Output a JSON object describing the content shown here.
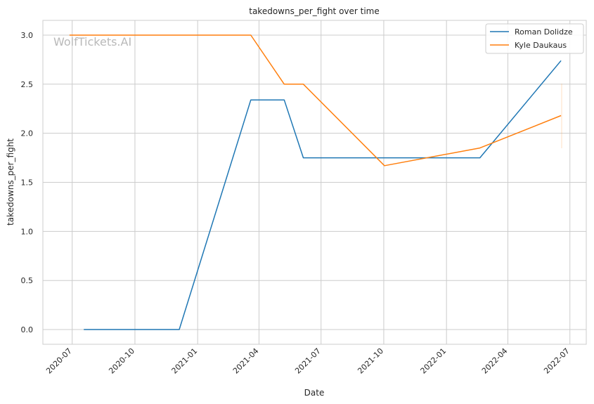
{
  "chart_data": {
    "type": "line",
    "title": "takedowns_per_fight over time",
    "xlabel": "Date",
    "ylabel": "takedowns_per_fight",
    "watermark": "WolfTickets.AI",
    "x_range": [
      "2020-05-19",
      "2022-07-25"
    ],
    "ylim": [
      -0.15,
      3.15
    ],
    "x_ticks": [
      "2020-07",
      "2020-10",
      "2021-01",
      "2021-04",
      "2021-07",
      "2021-10",
      "2022-01",
      "2022-04",
      "2022-07"
    ],
    "y_ticks": [
      "0.0",
      "0.5",
      "1.0",
      "1.5",
      "2.0",
      "2.5",
      "3.0"
    ],
    "grid": true,
    "legend_position": "top-right",
    "series": [
      {
        "name": "Roman Dolidze",
        "color": "#1f77b4",
        "points": [
          {
            "x": "2020-07-18",
            "y": 0.0
          },
          {
            "x": "2020-12-05",
            "y": 0.0
          },
          {
            "x": "2021-03-20",
            "y": 2.34
          },
          {
            "x": "2021-05-08",
            "y": 2.34
          },
          {
            "x": "2021-06-05",
            "y": 1.75
          },
          {
            "x": "2022-02-19",
            "y": 1.75
          },
          {
            "x": "2022-06-18",
            "y": 2.74
          }
        ]
      },
      {
        "name": "Kyle Daukaus",
        "color": "#ff7f0e",
        "points": [
          {
            "x": "2020-06-27",
            "y": 3.0
          },
          {
            "x": "2021-03-20",
            "y": 3.0
          },
          {
            "x": "2021-05-08",
            "y": 2.5
          },
          {
            "x": "2021-06-05",
            "y": 2.5
          },
          {
            "x": "2021-10-02",
            "y": 1.67
          },
          {
            "x": "2022-02-19",
            "y": 1.85
          },
          {
            "x": "2022-06-18",
            "y": 2.18
          }
        ]
      }
    ]
  }
}
